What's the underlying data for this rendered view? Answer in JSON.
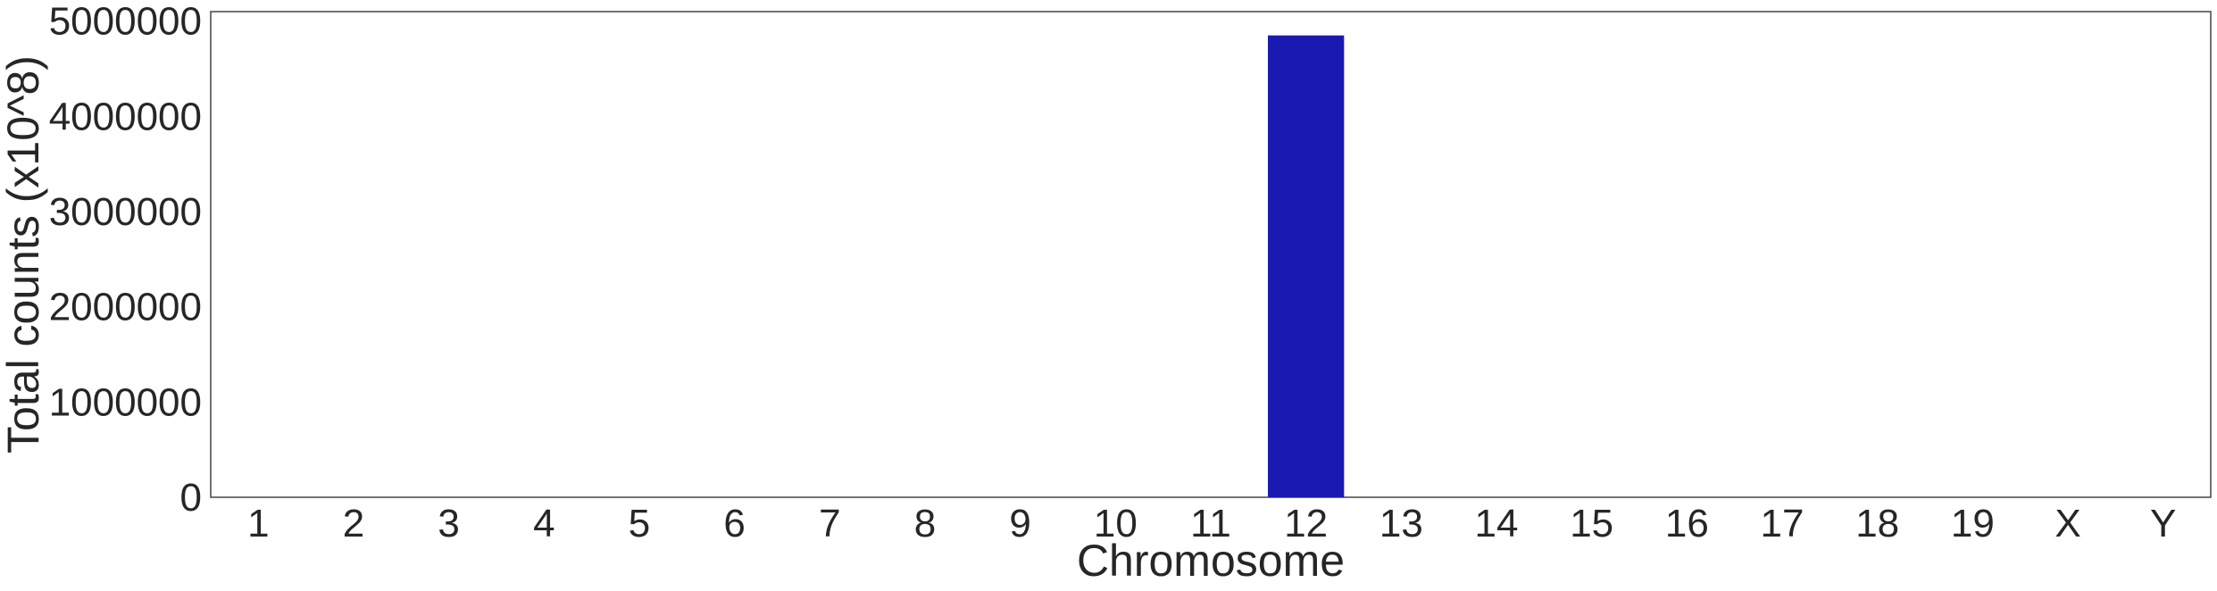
{
  "chart_data": {
    "type": "bar",
    "title": "",
    "xlabel": "Chromosome",
    "ylabel": "Total counts (x10^8)",
    "categories": [
      "1",
      "2",
      "3",
      "4",
      "5",
      "6",
      "7",
      "8",
      "9",
      "10",
      "11",
      "12",
      "13",
      "14",
      "15",
      "16",
      "17",
      "18",
      "19",
      "X",
      "Y"
    ],
    "values": [
      0,
      0,
      0,
      0,
      0,
      0,
      0,
      0,
      0,
      0,
      0,
      4850000,
      0,
      0,
      0,
      0,
      0,
      0,
      0,
      0,
      0
    ],
    "ylim": [
      0,
      5100000
    ],
    "yticks": [
      "0",
      "1000000",
      "2000000",
      "3000000",
      "4000000",
      "5000000"
    ],
    "yticks_values": [
      0,
      1000000,
      2000000,
      3000000,
      4000000,
      5000000
    ],
    "bar_color": "#1a1ab3",
    "grid": false,
    "legend": "none"
  }
}
